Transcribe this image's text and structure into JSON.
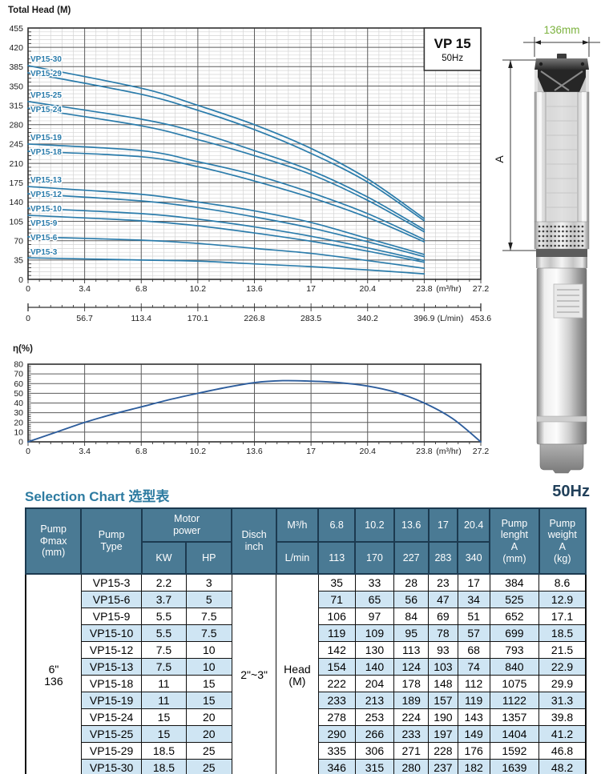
{
  "page": {
    "background": "#ffffff"
  },
  "figure": {
    "width_label": "136mm",
    "height_label": "A"
  },
  "chart_data": [
    {
      "type": "line",
      "title": "Total Head (M)",
      "inset_title": "VP 15",
      "inset_subtitle": "50Hz",
      "xlabel": "(m³/hr)",
      "x2label": "(L/min)",
      "xlim": [
        0,
        27.2
      ],
      "ylim": [
        0,
        455
      ],
      "x_ticks": [
        0,
        3.4,
        6.8,
        10.2,
        13.6,
        17,
        20.4,
        23.8,
        27.2
      ],
      "x2_ticks": [
        0,
        56.7,
        113.4,
        170.1,
        226.8,
        283.5,
        340.2,
        396.9,
        453.6
      ],
      "y_ticks": [
        0,
        35,
        70,
        105,
        140,
        175,
        210,
        245,
        280,
        315,
        350,
        385,
        420,
        455
      ],
      "grid": "on",
      "x": [
        0,
        6.8,
        10.2,
        13.6,
        17,
        20.4,
        23.8
      ],
      "series": [
        {
          "name": "VP15-30",
          "values": [
            387,
            346,
            315,
            280,
            237,
            182,
            110
          ]
        },
        {
          "name": "VP15-29",
          "values": [
            374,
            335,
            306,
            271,
            228,
            176,
            106
          ]
        },
        {
          "name": "VP15-25",
          "values": [
            322,
            290,
            266,
            233,
            197,
            149,
            90
          ]
        },
        {
          "name": "VP15-24",
          "values": [
            310,
            278,
            253,
            224,
            190,
            143,
            86
          ]
        },
        {
          "name": "VP15-19",
          "values": [
            245,
            233,
            213,
            189,
            157,
            119,
            72
          ]
        },
        {
          "name": "VP15-18",
          "values": [
            232,
            222,
            204,
            178,
            148,
            112,
            68
          ]
        },
        {
          "name": "VP15-13",
          "values": [
            168,
            154,
            140,
            124,
            103,
            74,
            45
          ]
        },
        {
          "name": "VP15-12",
          "values": [
            155,
            142,
            130,
            113,
            93,
            68,
            41
          ]
        },
        {
          "name": "VP15-10",
          "values": [
            129,
            119,
            109,
            95,
            78,
            57,
            34
          ]
        },
        {
          "name": "VP15-9",
          "values": [
            116,
            106,
            97,
            84,
            69,
            51,
            31
          ]
        },
        {
          "name": "VP15-6",
          "values": [
            77,
            71,
            65,
            56,
            47,
            34,
            20
          ]
        },
        {
          "name": "VP15-3",
          "values": [
            39,
            35,
            33,
            28,
            23,
            17,
            10
          ]
        }
      ]
    },
    {
      "type": "line",
      "title": "η(%)",
      "xlabel": "(m³/hr)",
      "xlim": [
        0,
        27.2
      ],
      "ylim": [
        0,
        80
      ],
      "x_ticks": [
        0,
        3.4,
        6.8,
        10.2,
        13.6,
        17,
        20.4,
        23.8,
        27.2
      ],
      "y_ticks": [
        0,
        10,
        20,
        30,
        40,
        50,
        60,
        70,
        80
      ],
      "grid": "on",
      "x": [
        0,
        1.7,
        3.4,
        5.1,
        6.8,
        8.5,
        10.2,
        11.9,
        13.6,
        15.3,
        17,
        18.7,
        20.4,
        22.1,
        23.8,
        25.5,
        27.2
      ],
      "values": [
        0,
        10,
        20,
        28.5,
        36,
        43.5,
        50,
        56,
        61,
        63,
        62.5,
        61,
        57.5,
        51,
        40,
        24,
        0
      ]
    }
  ],
  "selection": {
    "title": "Selection Chart 选型表",
    "freq": "50Hz",
    "header": {
      "pump_phimax": "Pump\nΦmax\n(mm)",
      "pump_type": "Pump\nType",
      "motor_power": "Motor\npower",
      "kw": "KW",
      "hp": "HP",
      "disch": "Disch\ninch",
      "m3h": "M³/h",
      "lmin": "L/min",
      "m3h_values": [
        "6.8",
        "10.2",
        "13.6",
        "17",
        "20.4"
      ],
      "lmin_values": [
        "113",
        "170",
        "227",
        "283",
        "340"
      ],
      "pump_length": "Pump\nlenght\nA\n(mm)",
      "pump_weight": "Pump\nweight\nA\n(kg)"
    },
    "merged": {
      "phimax": "6\"\n136",
      "disch": "2\"~3\"",
      "head": "Head\n(M)"
    },
    "rows": [
      {
        "type": "VP15-3",
        "kw": "2.2",
        "hp": "3",
        "heads": [
          "35",
          "33",
          "28",
          "23",
          "17"
        ],
        "length": "384",
        "weight": "8.6"
      },
      {
        "type": "VP15-6",
        "kw": "3.7",
        "hp": "5",
        "heads": [
          "71",
          "65",
          "56",
          "47",
          "34"
        ],
        "length": "525",
        "weight": "12.9"
      },
      {
        "type": "VP15-9",
        "kw": "5.5",
        "hp": "7.5",
        "heads": [
          "106",
          "97",
          "84",
          "69",
          "51"
        ],
        "length": "652",
        "weight": "17.1"
      },
      {
        "type": "VP15-10",
        "kw": "5.5",
        "hp": "7.5",
        "heads": [
          "119",
          "109",
          "95",
          "78",
          "57"
        ],
        "length": "699",
        "weight": "18.5"
      },
      {
        "type": "VP15-12",
        "kw": "7.5",
        "hp": "10",
        "heads": [
          "142",
          "130",
          "113",
          "93",
          "68"
        ],
        "length": "793",
        "weight": "21.5"
      },
      {
        "type": "VP15-13",
        "kw": "7.5",
        "hp": "10",
        "heads": [
          "154",
          "140",
          "124",
          "103",
          "74"
        ],
        "length": "840",
        "weight": "22.9"
      },
      {
        "type": "VP15-18",
        "kw": "11",
        "hp": "15",
        "heads": [
          "222",
          "204",
          "178",
          "148",
          "112"
        ],
        "length": "1075",
        "weight": "29.9"
      },
      {
        "type": "VP15-19",
        "kw": "11",
        "hp": "15",
        "heads": [
          "233",
          "213",
          "189",
          "157",
          "119"
        ],
        "length": "1122",
        "weight": "31.3"
      },
      {
        "type": "VP15-24",
        "kw": "15",
        "hp": "20",
        "heads": [
          "278",
          "253",
          "224",
          "190",
          "143"
        ],
        "length": "1357",
        "weight": "39.8"
      },
      {
        "type": "VP15-25",
        "kw": "15",
        "hp": "20",
        "heads": [
          "290",
          "266",
          "233",
          "197",
          "149"
        ],
        "length": "1404",
        "weight": "41.2"
      },
      {
        "type": "VP15-29",
        "kw": "18.5",
        "hp": "25",
        "heads": [
          "335",
          "306",
          "271",
          "228",
          "176"
        ],
        "length": "1592",
        "weight": "46.8"
      },
      {
        "type": "VP15-30",
        "kw": "18.5",
        "hp": "25",
        "heads": [
          "346",
          "315",
          "280",
          "237",
          "182"
        ],
        "length": "1639",
        "weight": "48.2"
      }
    ],
    "colors": {
      "header_bg": "#4a7a94",
      "alt_row": "#cfe5f3",
      "title": "#2d7ba1",
      "freq": "#21405a"
    }
  },
  "accents": {
    "curve_blue": "#2b7cab",
    "eff_blue": "#2d5d9c",
    "dim_green": "#7cb23e"
  }
}
